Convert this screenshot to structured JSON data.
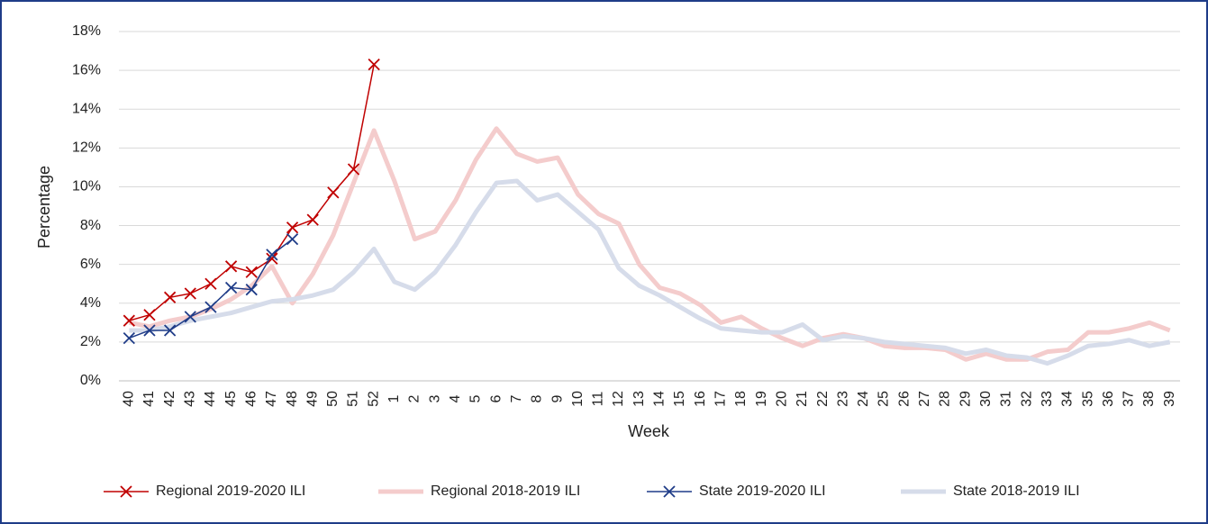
{
  "chart_data": {
    "type": "line",
    "x_label": "Week",
    "y_label": "Percentage",
    "categories": [
      "40",
      "41",
      "42",
      "43",
      "44",
      "45",
      "46",
      "47",
      "48",
      "49",
      "50",
      "51",
      "52",
      "1",
      "2",
      "3",
      "4",
      "5",
      "6",
      "7",
      "8",
      "9",
      "10",
      "11",
      "12",
      "13",
      "14",
      "15",
      "16",
      "17",
      "18",
      "19",
      "20",
      "21",
      "22",
      "23",
      "24",
      "25",
      "26",
      "27",
      "28",
      "29",
      "30",
      "31",
      "32",
      "33",
      "34",
      "35",
      "36",
      "37",
      "38",
      "39"
    ],
    "ylim": [
      0,
      18
    ],
    "yticks": [
      {
        "value": 0,
        "label": "0%"
      },
      {
        "value": 2,
        "label": "2%"
      },
      {
        "value": 4,
        "label": "4%"
      },
      {
        "value": 6,
        "label": "6%"
      },
      {
        "value": 8,
        "label": "8%"
      },
      {
        "value": 10,
        "label": "10%"
      },
      {
        "value": 12,
        "label": "12%"
      },
      {
        "value": 14,
        "label": "14%"
      },
      {
        "value": 16,
        "label": "16%"
      },
      {
        "value": 18,
        "label": "18%"
      }
    ],
    "grid": true,
    "legend": "bottom",
    "series": [
      {
        "name": "Regional 2019-2020 ILI",
        "color": "#c00000",
        "marker": "x",
        "values": [
          3.1,
          3.4,
          4.3,
          4.5,
          5.0,
          5.9,
          5.6,
          6.3,
          7.9,
          8.3,
          9.7,
          10.9,
          16.3,
          null,
          null,
          null,
          null,
          null,
          null,
          null,
          null,
          null,
          null,
          null,
          null,
          null,
          null,
          null,
          null,
          null,
          null,
          null,
          null,
          null,
          null,
          null,
          null,
          null,
          null,
          null,
          null,
          null,
          null,
          null,
          null,
          null,
          null,
          null,
          null,
          null,
          null,
          null
        ]
      },
      {
        "name": "Regional 2018-2019 ILI",
        "color": "#f4cccc",
        "values": [
          3.0,
          2.8,
          3.1,
          3.3,
          3.7,
          4.2,
          4.9,
          5.9,
          4.0,
          5.5,
          7.5,
          10.2,
          12.9,
          10.3,
          7.3,
          7.7,
          9.3,
          11.4,
          13.0,
          11.7,
          11.3,
          11.5,
          9.6,
          8.6,
          8.1,
          6.0,
          4.8,
          4.5,
          3.9,
          3.0,
          3.3,
          2.7,
          2.2,
          1.8,
          2.2,
          2.4,
          2.2,
          1.8,
          1.7,
          1.7,
          1.6,
          1.1,
          1.4,
          1.1,
          1.1,
          1.5,
          1.6,
          2.5,
          2.5,
          2.7,
          3.0,
          2.6
        ]
      },
      {
        "name": "State 2019-2020 ILI",
        "color": "#1f3c88",
        "marker": "x",
        "values": [
          2.2,
          2.6,
          2.6,
          3.3,
          3.8,
          4.8,
          4.7,
          6.5,
          7.3,
          null,
          null,
          null,
          null,
          null,
          null,
          null,
          null,
          null,
          null,
          null,
          null,
          null,
          null,
          null,
          null,
          null,
          null,
          null,
          null,
          null,
          null,
          null,
          null,
          null,
          null,
          null,
          null,
          null,
          null,
          null,
          null,
          null,
          null,
          null,
          null,
          null,
          null,
          null,
          null,
          null,
          null,
          null
        ]
      },
      {
        "name": "State 2018-2019 ILI",
        "color": "#d6dcea",
        "values": [
          2.6,
          2.6,
          2.8,
          3.1,
          3.3,
          3.5,
          3.8,
          4.1,
          4.2,
          4.4,
          4.7,
          5.6,
          6.8,
          5.1,
          4.7,
          5.6,
          7.0,
          8.7,
          10.2,
          10.3,
          9.3,
          9.6,
          8.7,
          7.8,
          5.8,
          4.9,
          4.4,
          3.8,
          3.2,
          2.7,
          2.6,
          2.5,
          2.5,
          2.9,
          2.1,
          2.3,
          2.2,
          2.0,
          1.9,
          1.8,
          1.7,
          1.4,
          1.6,
          1.3,
          1.2,
          0.9,
          1.3,
          1.8,
          1.9,
          2.1,
          1.8,
          2.0
        ]
      }
    ]
  }
}
